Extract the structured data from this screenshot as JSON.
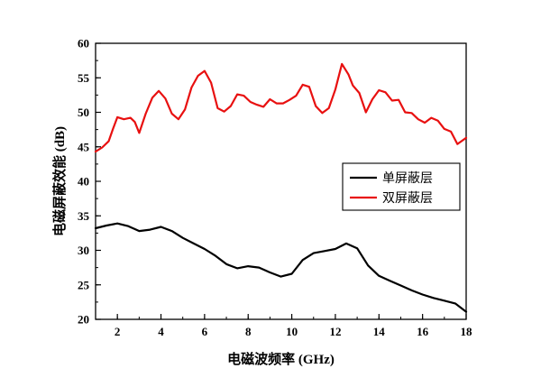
{
  "chart_data": {
    "type": "line",
    "xlabel": "电磁波频率 (GHz)",
    "ylabel": "电磁屏蔽效能 (dB)",
    "xlim": [
      1,
      18
    ],
    "ylim": [
      20,
      60
    ],
    "xticks": [
      2,
      4,
      6,
      8,
      10,
      12,
      14,
      16,
      18
    ],
    "yticks": [
      20,
      25,
      30,
      35,
      40,
      45,
      50,
      55,
      60
    ],
    "grid": false,
    "legend_position": "right-middle",
    "series": [
      {
        "name": "单屏蔽层",
        "color": "#000000",
        "x": [
          1.0,
          1.5,
          2.0,
          2.5,
          3.0,
          3.5,
          4.0,
          4.5,
          5.0,
          5.5,
          6.0,
          6.5,
          7.0,
          7.5,
          8.0,
          8.5,
          9.0,
          9.5,
          10.0,
          10.5,
          11.0,
          11.5,
          12.0,
          12.5,
          13.0,
          13.5,
          14.0,
          14.5,
          15.0,
          15.5,
          16.0,
          16.5,
          17.0,
          17.5,
          18.0
        ],
        "y": [
          33.2,
          33.6,
          33.9,
          33.5,
          32.8,
          33.0,
          33.4,
          32.8,
          31.8,
          31.0,
          30.2,
          29.2,
          28.0,
          27.4,
          27.7,
          27.5,
          26.8,
          26.2,
          26.6,
          28.6,
          29.6,
          29.9,
          30.2,
          31.0,
          30.3,
          27.8,
          26.3,
          25.6,
          24.9,
          24.2,
          23.6,
          23.1,
          22.7,
          22.3,
          21.1
        ]
      },
      {
        "name": "双屏蔽层",
        "color": "#e81010",
        "x": [
          1.0,
          1.3,
          1.6,
          1.8,
          2.0,
          2.3,
          2.6,
          2.8,
          3.0,
          3.3,
          3.6,
          3.9,
          4.2,
          4.5,
          4.8,
          5.1,
          5.4,
          5.7,
          6.0,
          6.3,
          6.6,
          6.9,
          7.2,
          7.5,
          7.8,
          8.1,
          8.4,
          8.7,
          9.0,
          9.3,
          9.6,
          9.9,
          10.2,
          10.5,
          10.8,
          11.1,
          11.4,
          11.7,
          12.0,
          12.3,
          12.6,
          12.8,
          13.1,
          13.4,
          13.7,
          14.0,
          14.3,
          14.6,
          14.9,
          15.2,
          15.5,
          15.8,
          16.1,
          16.4,
          16.7,
          17.0,
          17.3,
          17.6,
          18.0
        ],
        "y": [
          44.3,
          44.9,
          45.8,
          47.6,
          49.3,
          49.0,
          49.2,
          48.6,
          47.0,
          49.8,
          52.1,
          53.1,
          52.0,
          49.8,
          49.0,
          50.4,
          53.6,
          55.3,
          56.0,
          54.3,
          50.6,
          50.1,
          50.9,
          52.6,
          52.4,
          51.5,
          51.1,
          50.8,
          51.9,
          51.3,
          51.3,
          51.8,
          52.4,
          54.0,
          53.7,
          50.9,
          49.9,
          50.6,
          53.3,
          57.0,
          55.5,
          53.9,
          52.8,
          50.0,
          51.9,
          53.2,
          52.9,
          51.7,
          51.8,
          50.0,
          49.9,
          49.0,
          48.5,
          49.2,
          48.8,
          47.6,
          47.2,
          45.4,
          46.3
        ]
      }
    ]
  }
}
